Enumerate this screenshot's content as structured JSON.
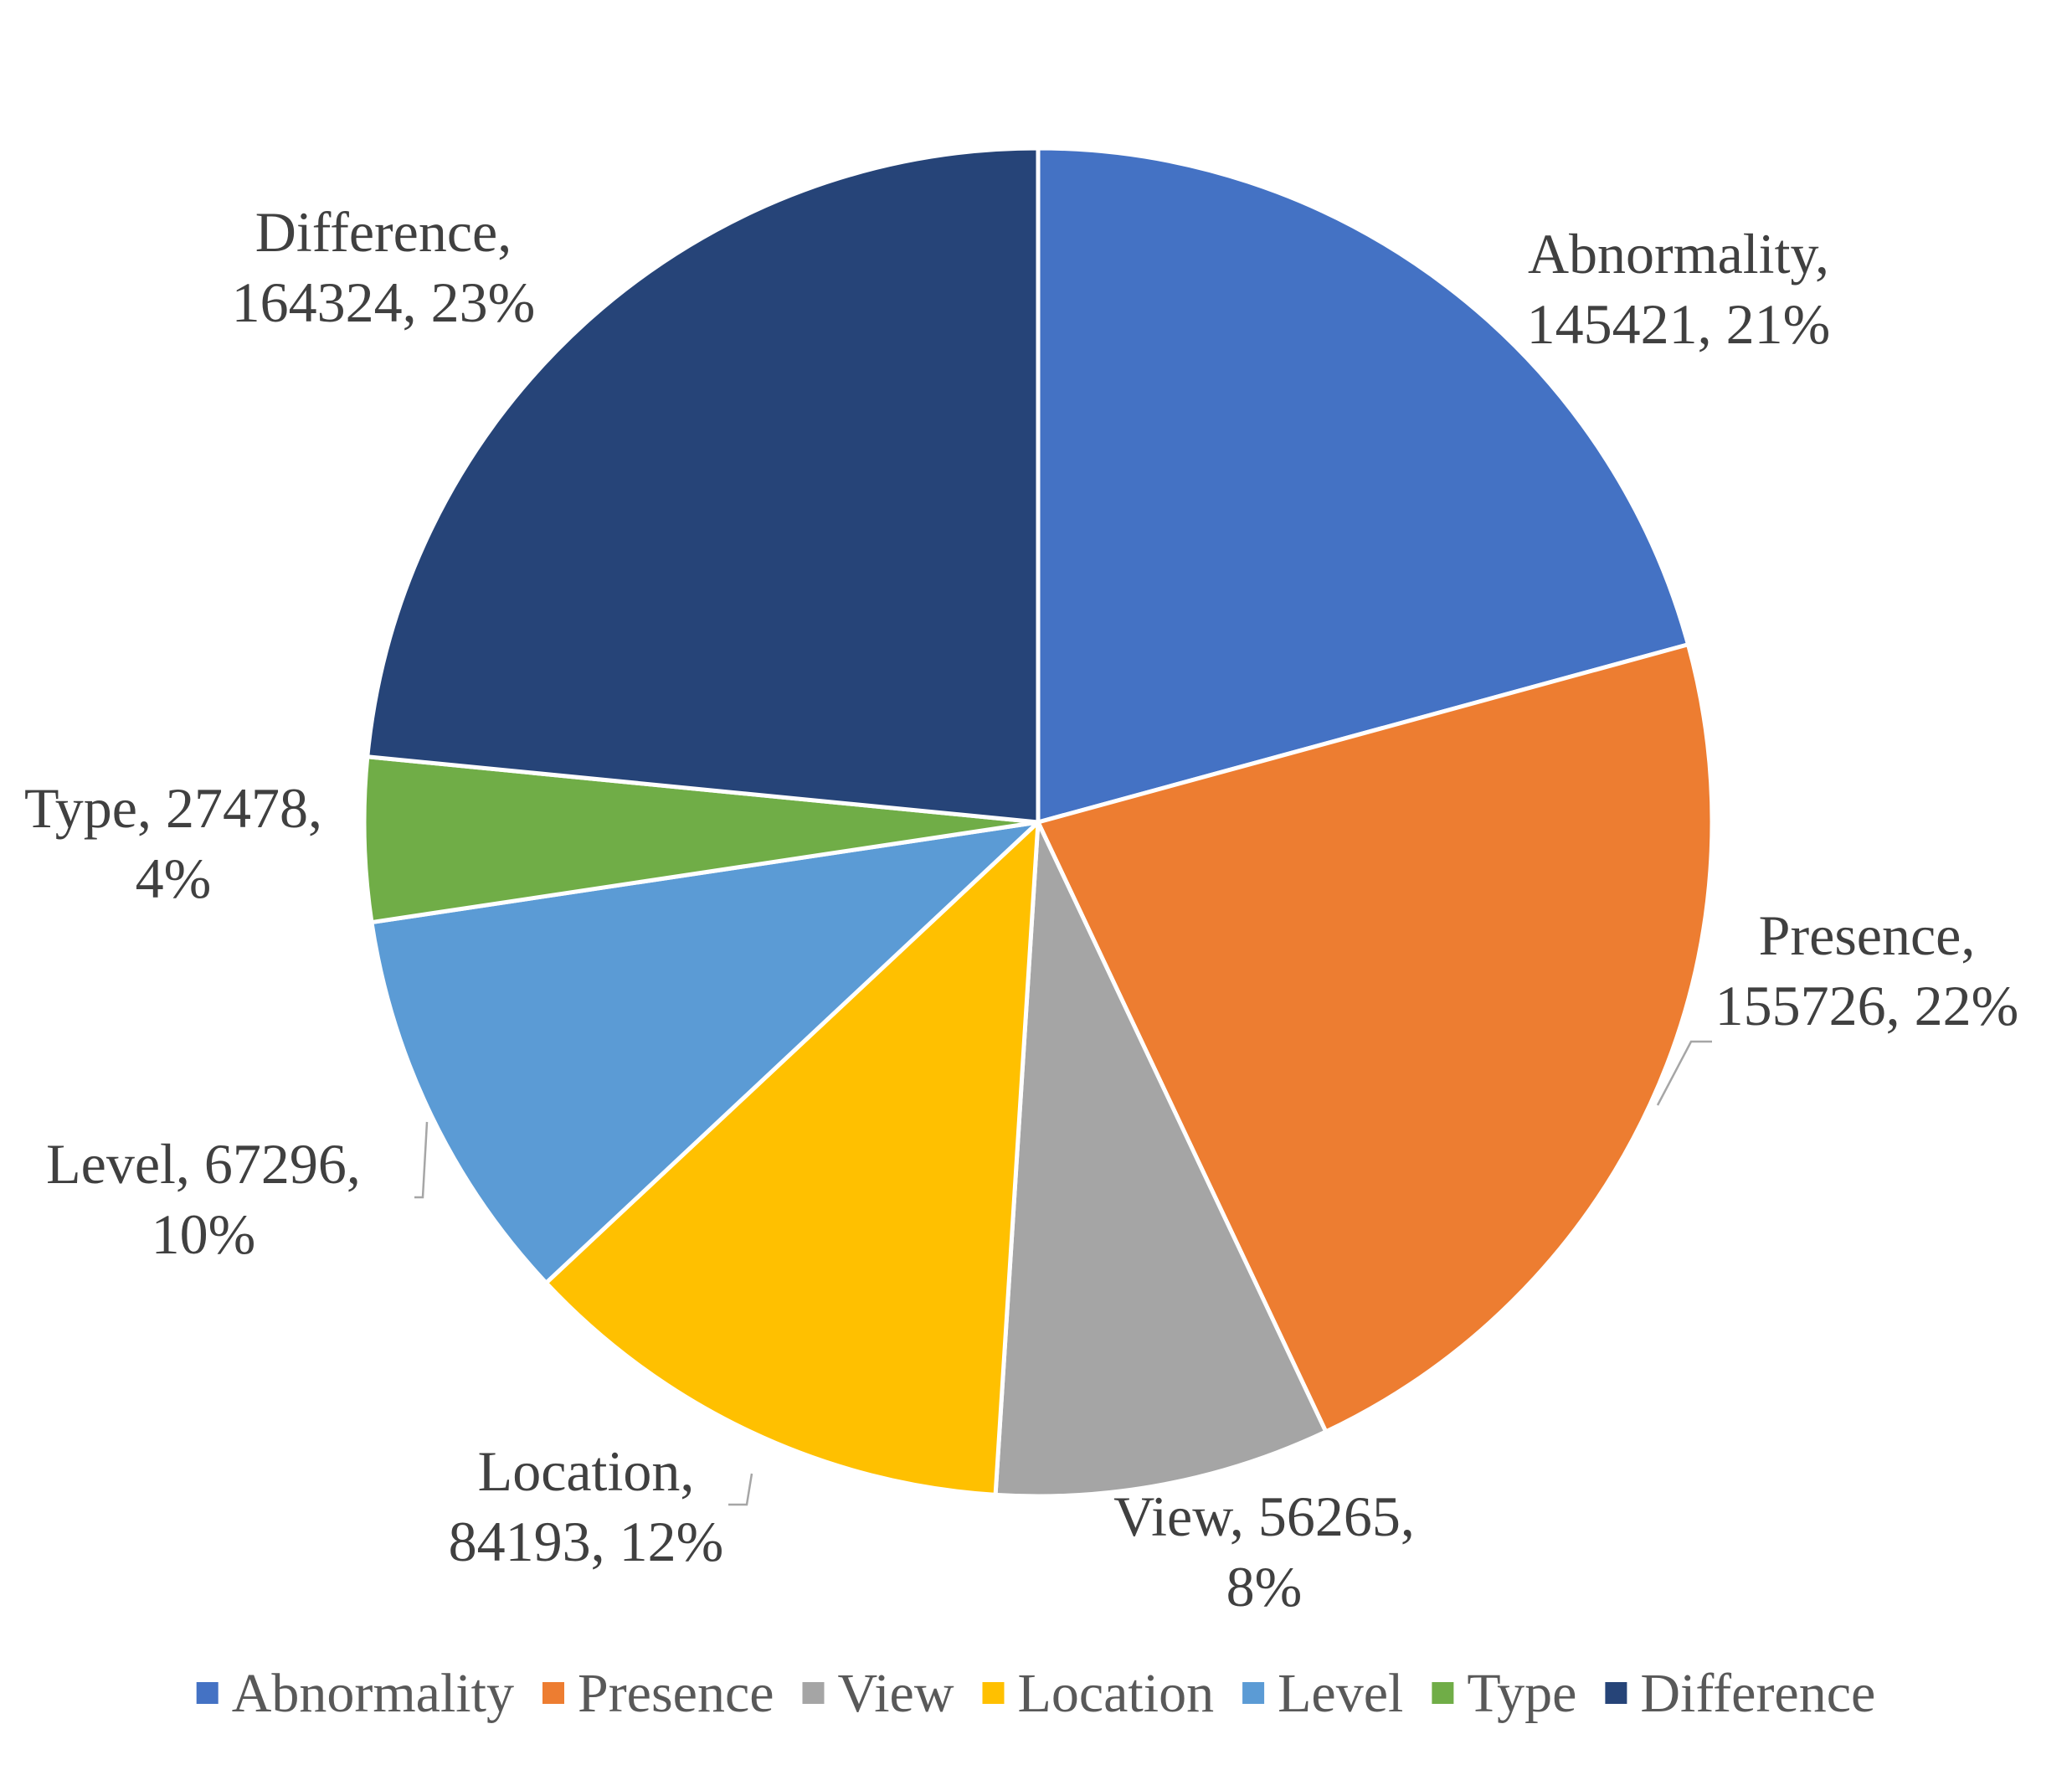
{
  "chart_data": {
    "type": "pie",
    "categories": [
      "Abnormality",
      "Presence",
      "View",
      "Location",
      "Level",
      "Type",
      "Difference"
    ],
    "values": [
      145421,
      155726,
      56265,
      84193,
      67296,
      27478,
      164324
    ],
    "percent_labels": [
      "21%",
      "22%",
      "8%",
      "12%",
      "10%",
      "4%",
      "23%"
    ],
    "data_labels": [
      [
        "Abnormality,",
        "145421, 21%"
      ],
      [
        "Presence,",
        "155726, 22%"
      ],
      [
        "View, 56265,",
        "8%"
      ],
      [
        "Location,",
        "84193, 12%"
      ],
      [
        "Level, 67296,",
        "10%"
      ],
      [
        "Type, 27478,",
        "4%"
      ],
      [
        "Difference,",
        "164324, 23%"
      ]
    ],
    "colors": [
      "#4472C4",
      "#ED7D31",
      "#A5A5A5",
      "#FFC000",
      "#5B9BD5",
      "#70AD47",
      "#264478"
    ],
    "start_angle": "12 o'clock",
    "direction": "clockwise",
    "legend": {
      "position": "bottom",
      "entries": [
        "Abnormality",
        "Presence",
        "View",
        "Location",
        "Level",
        "Type",
        "Difference"
      ]
    }
  }
}
